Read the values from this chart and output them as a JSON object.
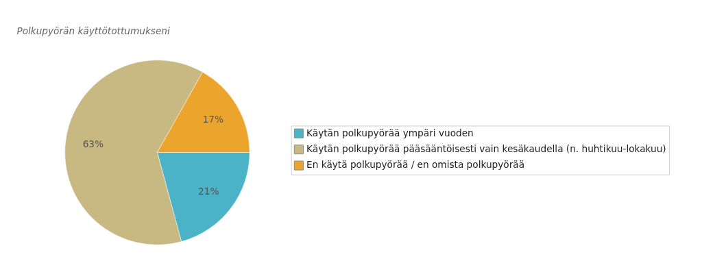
{
  "chart_data": {
    "type": "pie",
    "title": "Polkupyörän käyttötottumukseni",
    "categories": [
      "Käytän polkupyörää ympäri vuoden",
      "Käytän polkupyörää pääsääntöisesti vain kesäkaudella (n. huhtikuu-lokakuu)",
      "En käytä polkupyörää / en omista polkupyörää"
    ],
    "values": [
      21,
      63,
      17
    ],
    "value_labels": [
      "21%",
      "63%",
      "17%"
    ],
    "colors": [
      "#4ab3c8",
      "#c8b882",
      "#eba52d"
    ],
    "legend": "right"
  }
}
